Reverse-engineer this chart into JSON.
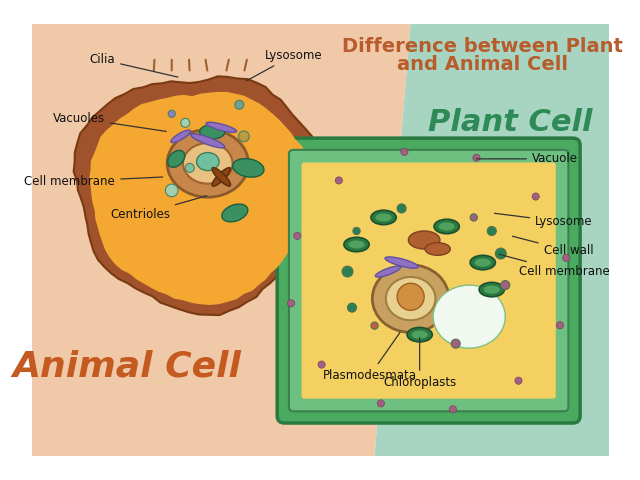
{
  "title_line1": "Difference between Plant",
  "title_line2": "and Animal Cell",
  "title_color": "#b85c2c",
  "bg_left_color": "#f0c9a8",
  "bg_right_color": "#a8d5c2",
  "animal_cell_label": "Animal Cell",
  "animal_cell_label_color": "#c45a20",
  "plant_cell_label": "Plant Cell",
  "plant_cell_label_color": "#2e8b57",
  "animal_labels": [
    "Cilia",
    "Lysosome",
    "Vacuoles",
    "Cell membrane",
    "Centrioles"
  ],
  "plant_labels": [
    "Vacuole",
    "Lysosome",
    "Cell wall",
    "Cell membrane",
    "Plasmodesmata",
    "Chloroplasts"
  ],
  "animal_cell_outer_color": "#a0522d",
  "animal_cell_inner_color": "#f4a832",
  "plant_cell_outer_color": "#5dab6e",
  "plant_cell_inner_color": "#f4d060",
  "nucleus_color": "#8b4513",
  "plant_nucleus_color": "#c8a060"
}
